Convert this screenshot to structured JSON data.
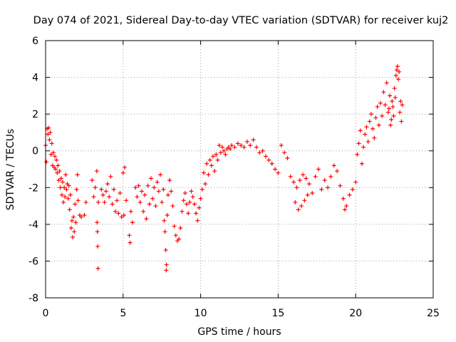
{
  "chart_data": {
    "type": "scatter",
    "title": "Day 074 of 2021, Sidereal Day-to-day VTEC variation (SDTVAR) for receiver kuj2",
    "xlabel": "GPS time / hours",
    "ylabel": "SDTVAR / TECUs",
    "xlim": [
      0,
      25
    ],
    "ylim": [
      -8,
      6
    ],
    "x_ticks": [
      0,
      5,
      10,
      15,
      20,
      25
    ],
    "y_ticks": [
      -8,
      -6,
      -4,
      -2,
      0,
      2,
      4,
      6
    ],
    "grid": true,
    "marker": "+",
    "color": "#ff0000",
    "series": [
      {
        "name": "SDTVAR",
        "points": [
          [
            0.0,
            0.3
          ],
          [
            0.05,
            -0.6
          ],
          [
            0.1,
            1.2
          ],
          [
            0.15,
            0.9
          ],
          [
            0.2,
            1.25
          ],
          [
            0.25,
            0.6
          ],
          [
            0.3,
            1.0
          ],
          [
            0.35,
            -0.2
          ],
          [
            0.4,
            0.4
          ],
          [
            0.45,
            -0.8
          ],
          [
            0.5,
            -0.1
          ],
          [
            0.55,
            -0.9
          ],
          [
            0.6,
            -0.3
          ],
          [
            0.65,
            -1.0
          ],
          [
            0.7,
            -0.5
          ],
          [
            0.75,
            -1.2
          ],
          [
            0.8,
            -0.8
          ],
          [
            0.85,
            -1.6
          ],
          [
            0.9,
            -1.1
          ],
          [
            0.95,
            -2.0
          ],
          [
            1.0,
            -1.5
          ],
          [
            1.05,
            -2.4
          ],
          [
            1.1,
            -1.7
          ],
          [
            1.15,
            -2.8
          ],
          [
            1.2,
            -2.0
          ],
          [
            1.25,
            -2.5
          ],
          [
            1.3,
            -1.3
          ],
          [
            1.35,
            -2.1
          ],
          [
            1.4,
            -1.8
          ],
          [
            1.45,
            -2.6
          ],
          [
            1.5,
            -1.9
          ],
          [
            1.55,
            -3.2
          ],
          [
            1.6,
            -2.4
          ],
          [
            1.65,
            -4.2
          ],
          [
            1.7,
            -3.8
          ],
          [
            1.75,
            -4.7
          ],
          [
            1.8,
            -3.6
          ],
          [
            1.85,
            -4.4
          ],
          [
            1.9,
            -2.9
          ],
          [
            1.95,
            -3.9
          ],
          [
            2.0,
            -2.1
          ],
          [
            2.05,
            -1.3
          ],
          [
            2.1,
            -2.7
          ],
          [
            2.2,
            -3.5
          ],
          [
            2.3,
            -3.6
          ],
          [
            2.5,
            -3.5
          ],
          [
            2.6,
            -2.8
          ],
          [
            3.0,
            -1.6
          ],
          [
            3.1,
            -2.5
          ],
          [
            3.2,
            -2.0
          ],
          [
            3.3,
            -1.1
          ],
          [
            3.32,
            -3.9
          ],
          [
            3.34,
            -4.4
          ],
          [
            3.36,
            -5.2
          ],
          [
            3.38,
            -6.4
          ],
          [
            3.4,
            -2.8
          ],
          [
            3.6,
            -2.1
          ],
          [
            3.7,
            -2.4
          ],
          [
            3.8,
            -2.8
          ],
          [
            3.9,
            -2.2
          ],
          [
            4.0,
            -1.8
          ],
          [
            4.1,
            -2.5
          ],
          [
            4.2,
            -1.4
          ],
          [
            4.3,
            -2.9
          ],
          [
            4.4,
            -2.1
          ],
          [
            4.5,
            -3.3
          ],
          [
            4.6,
            -2.7
          ],
          [
            4.7,
            -3.4
          ],
          [
            4.8,
            -2.3
          ],
          [
            4.9,
            -3.6
          ],
          [
            5.0,
            -1.2
          ],
          [
            5.05,
            -3.5
          ],
          [
            5.1,
            -0.9
          ],
          [
            5.2,
            -2.7
          ],
          [
            5.4,
            -4.6
          ],
          [
            5.45,
            -5.0
          ],
          [
            5.5,
            -3.3
          ],
          [
            5.6,
            -3.9
          ],
          [
            5.8,
            -2.0
          ],
          [
            5.9,
            -2.5
          ],
          [
            6.0,
            -1.9
          ],
          [
            6.1,
            -2.8
          ],
          [
            6.2,
            -2.2
          ],
          [
            6.3,
            -3.3
          ],
          [
            6.4,
            -2.4
          ],
          [
            6.5,
            -3.7
          ],
          [
            6.6,
            -1.9
          ],
          [
            6.7,
            -2.9
          ],
          [
            6.8,
            -1.5
          ],
          [
            6.9,
            -2.6
          ],
          [
            7.0,
            -2.0
          ],
          [
            7.1,
            -3.0
          ],
          [
            7.2,
            -1.7
          ],
          [
            7.3,
            -2.2
          ],
          [
            7.4,
            -1.3
          ],
          [
            7.5,
            -2.8
          ],
          [
            7.6,
            -2.1
          ],
          [
            7.65,
            -3.8
          ],
          [
            7.7,
            -4.4
          ],
          [
            7.75,
            -5.4
          ],
          [
            7.78,
            -6.5
          ],
          [
            7.8,
            -6.2
          ],
          [
            7.85,
            -3.5
          ],
          [
            7.9,
            -2.4
          ],
          [
            8.0,
            -1.6
          ],
          [
            8.1,
            -2.2
          ],
          [
            8.2,
            -3.0
          ],
          [
            8.3,
            -4.1
          ],
          [
            8.4,
            -4.6
          ],
          [
            8.5,
            -4.9
          ],
          [
            8.6,
            -4.8
          ],
          [
            8.7,
            -4.2
          ],
          [
            8.8,
            -3.3
          ],
          [
            8.9,
            -2.7
          ],
          [
            9.0,
            -2.3
          ],
          [
            9.1,
            -2.9
          ],
          [
            9.2,
            -3.4
          ],
          [
            9.3,
            -2.8
          ],
          [
            9.4,
            -2.2
          ],
          [
            9.5,
            -2.5
          ],
          [
            9.6,
            -2.9
          ],
          [
            9.7,
            -3.4
          ],
          [
            9.8,
            -3.8
          ],
          [
            9.9,
            -3.1
          ],
          [
            10.0,
            -2.6
          ],
          [
            10.1,
            -2.1
          ],
          [
            10.2,
            -1.2
          ],
          [
            10.3,
            -1.8
          ],
          [
            10.4,
            -0.7
          ],
          [
            10.5,
            -1.3
          ],
          [
            10.6,
            -0.5
          ],
          [
            10.7,
            -0.8
          ],
          [
            10.8,
            -0.3
          ],
          [
            10.9,
            -1.1
          ],
          [
            11.0,
            -0.2
          ],
          [
            11.1,
            -0.5
          ],
          [
            11.2,
            0.3
          ],
          [
            11.3,
            -0.1
          ],
          [
            11.4,
            0.2
          ],
          [
            11.5,
            0.0
          ],
          [
            11.6,
            -0.2
          ],
          [
            11.7,
            0.1
          ],
          [
            11.8,
            0.2
          ],
          [
            11.9,
            0.1
          ],
          [
            12.0,
            0.3
          ],
          [
            12.2,
            0.2
          ],
          [
            12.4,
            0.4
          ],
          [
            12.6,
            0.3
          ],
          [
            12.8,
            0.2
          ],
          [
            13.0,
            0.5
          ],
          [
            13.2,
            0.3
          ],
          [
            13.4,
            0.6
          ],
          [
            13.6,
            0.2
          ],
          [
            13.8,
            -0.1
          ],
          [
            14.0,
            0.0
          ],
          [
            14.2,
            -0.3
          ],
          [
            14.4,
            -0.5
          ],
          [
            14.6,
            -0.7
          ],
          [
            14.8,
            -1.0
          ],
          [
            15.0,
            -1.2
          ],
          [
            15.2,
            0.3
          ],
          [
            15.4,
            -0.1
          ],
          [
            15.6,
            -0.4
          ],
          [
            15.8,
            -1.4
          ],
          [
            16.0,
            -1.7
          ],
          [
            16.2,
            -2.0
          ],
          [
            16.4,
            -1.6
          ],
          [
            16.6,
            -1.3
          ],
          [
            16.8,
            -1.5
          ],
          [
            17.0,
            -1.8
          ],
          [
            17.2,
            -2.3
          ],
          [
            16.1,
            -2.8
          ],
          [
            16.3,
            -3.2
          ],
          [
            16.5,
            -3.0
          ],
          [
            16.7,
            -2.7
          ],
          [
            16.9,
            -2.4
          ],
          [
            17.4,
            -1.4
          ],
          [
            17.6,
            -1.0
          ],
          [
            17.8,
            -2.1
          ],
          [
            18.0,
            -1.6
          ],
          [
            18.2,
            -2.0
          ],
          [
            18.4,
            -1.4
          ],
          [
            18.6,
            -0.8
          ],
          [
            18.8,
            -1.1
          ],
          [
            19.0,
            -1.9
          ],
          [
            19.2,
            -2.6
          ],
          [
            19.3,
            -3.2
          ],
          [
            19.4,
            -3.0
          ],
          [
            19.6,
            -2.4
          ],
          [
            19.8,
            -2.1
          ],
          [
            20.0,
            -1.7
          ],
          [
            20.1,
            -0.2
          ],
          [
            20.2,
            0.4
          ],
          [
            20.3,
            1.1
          ],
          [
            20.4,
            -0.7
          ],
          [
            20.5,
            0.2
          ],
          [
            20.6,
            0.9
          ],
          [
            20.7,
            1.3
          ],
          [
            20.8,
            0.5
          ],
          [
            20.9,
            1.6
          ],
          [
            21.0,
            2.0
          ],
          [
            21.1,
            1.2
          ],
          [
            21.2,
            0.7
          ],
          [
            21.3,
            1.8
          ],
          [
            21.4,
            2.4
          ],
          [
            21.5,
            1.4
          ],
          [
            21.6,
            2.6
          ],
          [
            21.7,
            1.9
          ],
          [
            21.8,
            3.2
          ],
          [
            21.9,
            2.5
          ],
          [
            22.0,
            3.7
          ],
          [
            22.1,
            2.1
          ],
          [
            22.2,
            3.0
          ],
          [
            22.3,
            1.7
          ],
          [
            22.4,
            2.4
          ],
          [
            22.5,
            3.4
          ],
          [
            22.6,
            4.1
          ],
          [
            22.7,
            4.6
          ],
          [
            22.8,
            4.3
          ],
          [
            22.9,
            2.7
          ],
          [
            23.0,
            2.5
          ],
          [
            22.95,
            1.6
          ],
          [
            22.85,
            2.1
          ],
          [
            22.75,
            3.9
          ],
          [
            22.65,
            4.4
          ],
          [
            22.55,
            2.9
          ],
          [
            22.45,
            1.9
          ],
          [
            22.35,
            2.7
          ],
          [
            22.25,
            1.4
          ],
          [
            22.15,
            2.3
          ]
        ]
      }
    ]
  }
}
